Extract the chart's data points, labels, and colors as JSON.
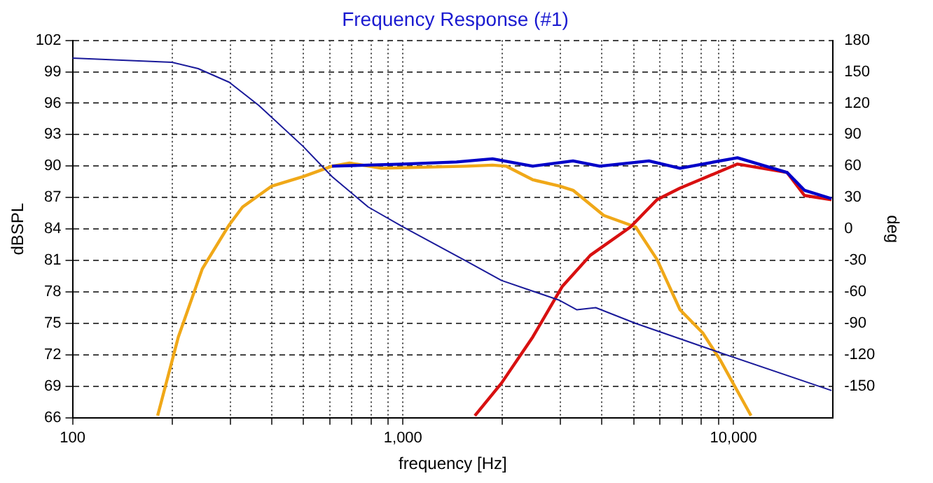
{
  "chart_data": {
    "type": "line",
    "title": "Frequency Response (#1)",
    "xlabel": "frequency [Hz]",
    "ylabel": "dBSPL",
    "y2label": "deg",
    "log": "x",
    "grid": true,
    "legend": false,
    "marker": "none",
    "line_style": "solid",
    "xlim": [
      100,
      20000
    ],
    "xticks": [
      {
        "value": 100,
        "label": "100"
      },
      {
        "value": 200,
        "label": null
      },
      {
        "value": 300,
        "label": null
      },
      {
        "value": 400,
        "label": null
      },
      {
        "value": 500,
        "label": null
      },
      {
        "value": 600,
        "label": null
      },
      {
        "value": 700,
        "label": null
      },
      {
        "value": 800,
        "label": null
      },
      {
        "value": 900,
        "label": null
      },
      {
        "value": 1000,
        "label": "1,000"
      },
      {
        "value": 2000,
        "label": null
      },
      {
        "value": 3000,
        "label": null
      },
      {
        "value": 4000,
        "label": null
      },
      {
        "value": 5000,
        "label": null
      },
      {
        "value": 6000,
        "label": null
      },
      {
        "value": 7000,
        "label": null
      },
      {
        "value": 8000,
        "label": null
      },
      {
        "value": 9000,
        "label": null
      },
      {
        "value": 10000,
        "label": "10,000"
      }
    ],
    "ylim": [
      66,
      102
    ],
    "yticks": [
      66,
      69,
      72,
      75,
      78,
      81,
      84,
      87,
      90,
      93,
      96,
      99,
      102
    ],
    "y2lim": [
      -180,
      180
    ],
    "y2ticks": [
      -150,
      -120,
      -90,
      -60,
      -30,
      0,
      30,
      60,
      90,
      120,
      150,
      180
    ],
    "series": [
      {
        "color": "#0000c8",
        "x": [
          610,
          1000,
          1452,
          1866,
          2470,
          3270,
          3940,
          5550,
          6890,
          10280,
          14520,
          16400,
          19800
        ],
        "values": [
          90.0,
          90.2,
          90.4,
          90.7,
          90.0,
          90.5,
          90.0,
          90.5,
          89.8,
          90.8,
          89.4,
          87.7,
          86.9
        ]
      },
      {
        "color": "#1a1a9a",
        "axis": "y2",
        "x": [
          100,
          200,
          240,
          298,
          366,
          498,
          610,
          785,
          1000,
          1563,
          1986,
          2978,
          3360,
          3830,
          5060,
          9120,
          19800
        ],
        "values": [
          163,
          159,
          153,
          140,
          118,
          79,
          50,
          21,
          2,
          -31,
          -49,
          -68,
          -77,
          -75,
          -90,
          -118,
          -154
        ]
      },
      {
        "color": "#d81010",
        "x": [
          1650,
          1986,
          2470,
          3030,
          3690,
          4880,
          5870,
          6890,
          10280,
          14520,
          16400,
          19800
        ],
        "values": [
          66.2,
          69.3,
          73.7,
          78.5,
          81.5,
          84.2,
          86.8,
          87.9,
          90.2,
          89.4,
          87.2,
          86.8
        ]
      },
      {
        "color": "#f0a818",
        "x": [
          181,
          209,
          247,
          298,
          327,
          401,
          498,
          610,
          689,
          861,
          1563,
          1866,
          2050,
          2470,
          2980,
          3270,
          4050,
          5060,
          5870,
          6890,
          8070,
          9120,
          11300
        ],
        "values": [
          66.2,
          73.7,
          80.2,
          84.4,
          86.1,
          88.1,
          89.0,
          90.0,
          90.3,
          89.8,
          90.0,
          90.1,
          90.0,
          88.7,
          88.1,
          87.7,
          85.3,
          84.2,
          81.1,
          76.3,
          74.1,
          71.5,
          66.2
        ]
      }
    ]
  }
}
